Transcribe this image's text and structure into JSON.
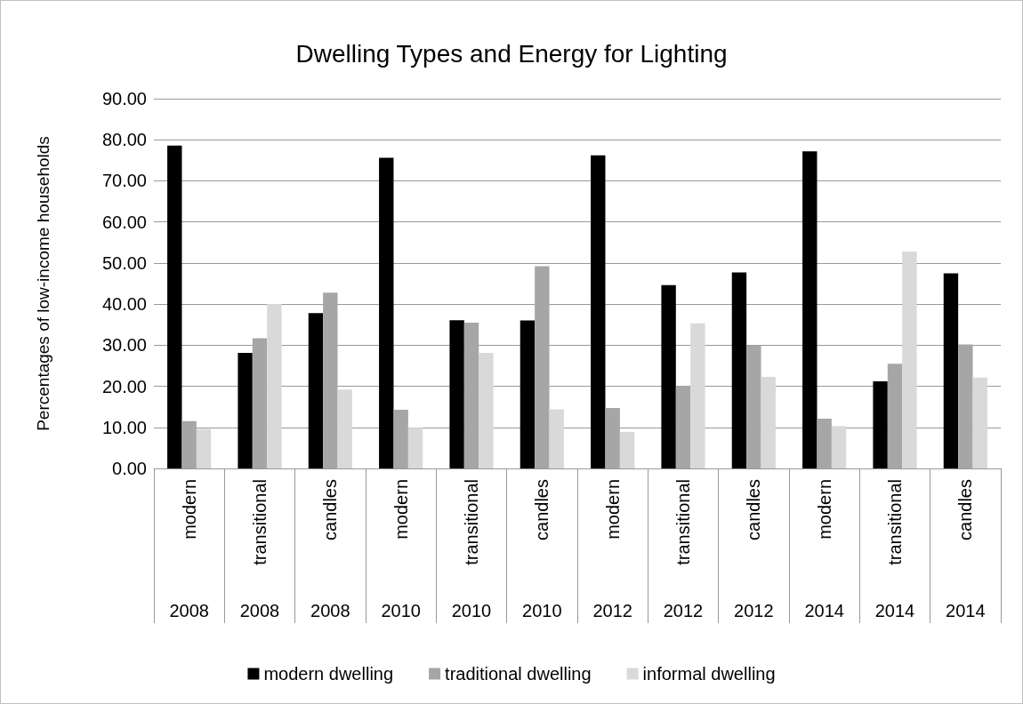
{
  "chart_data": {
    "type": "bar",
    "title": "Dwelling Types and Energy for Lighting",
    "ylabel": "Percentages of low-income households",
    "categories": [
      "modern\n2008",
      "transitional\n2008",
      "candles\n2008",
      "modern\n2010",
      "transitional\n2010",
      "candles\n2010",
      "modern\n2012",
      "transitional\n2012",
      "candles\n2012",
      "modern\n2014",
      "transitional\n2014",
      "candles\n2014"
    ],
    "series": [
      {
        "name": "modern dwelling",
        "color": "#000000",
        "values": [
          78.6,
          28.1,
          37.8,
          75.6,
          36.1,
          36.0,
          76.2,
          44.6,
          47.7,
          77.2,
          21.2,
          47.5
        ]
      },
      {
        "name": "traditional dwelling",
        "color": "#a6a6a6",
        "values": [
          11.5,
          31.7,
          42.8,
          14.3,
          35.5,
          49.2,
          14.7,
          20.1,
          29.9,
          12.1,
          25.5,
          30.2
        ]
      },
      {
        "name": "informal dwelling",
        "color": "#d9d9d9",
        "values": [
          9.6,
          40.0,
          19.2,
          9.9,
          28.1,
          14.4,
          8.9,
          35.3,
          22.3,
          10.3,
          52.8,
          22.1
        ]
      }
    ],
    "ylim": [
      0,
      90
    ],
    "yticks": [
      {
        "value": 0,
        "label": "0.00"
      },
      {
        "value": 10,
        "label": "10.00"
      },
      {
        "value": 20,
        "label": "20.00"
      },
      {
        "value": 30,
        "label": "30.00"
      },
      {
        "value": 40,
        "label": "40.00"
      },
      {
        "value": 50,
        "label": "50.00"
      },
      {
        "value": 60,
        "label": "60.00"
      },
      {
        "value": 70,
        "label": "70.00"
      },
      {
        "value": 80,
        "label": "80.00"
      },
      {
        "value": 90,
        "label": "90.00"
      }
    ],
    "grid": "y",
    "legend": "bottom"
  }
}
